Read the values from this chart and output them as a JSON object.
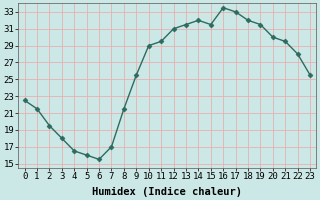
{
  "x": [
    0,
    1,
    2,
    3,
    4,
    5,
    6,
    7,
    8,
    9,
    10,
    11,
    12,
    13,
    14,
    15,
    16,
    17,
    18,
    19,
    20,
    21,
    22,
    23
  ],
  "y": [
    22.5,
    21.5,
    19.5,
    18.0,
    16.5,
    16.0,
    15.5,
    17.0,
    21.5,
    25.5,
    29.0,
    29.5,
    31.0,
    31.5,
    32.0,
    31.5,
    33.5,
    33.0,
    32.0,
    31.5,
    30.0,
    29.5,
    28.0,
    25.5
  ],
  "xlabel": "Humidex (Indice chaleur)",
  "ylim": [
    14.5,
    34.0
  ],
  "xlim": [
    -0.5,
    23.5
  ],
  "yticks": [
    15,
    17,
    19,
    21,
    23,
    25,
    27,
    29,
    31,
    33
  ],
  "xticks": [
    0,
    1,
    2,
    3,
    4,
    5,
    6,
    7,
    8,
    9,
    10,
    11,
    12,
    13,
    14,
    15,
    16,
    17,
    18,
    19,
    20,
    21,
    22,
    23
  ],
  "line_color": "#2d6b60",
  "marker": "D",
  "marker_size": 2.5,
  "bg_color": "#cce8e6",
  "grid_color": "#e8b0b0",
  "tick_label_fontsize": 6.5,
  "xlabel_fontsize": 7.5,
  "line_width": 1.0
}
